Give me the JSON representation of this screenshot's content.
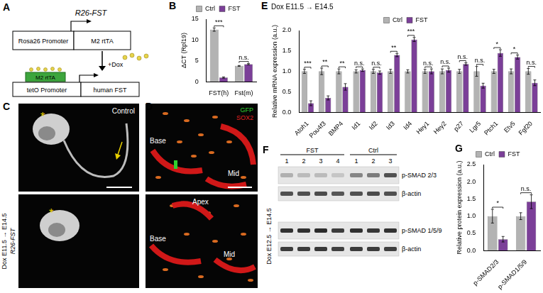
{
  "panel_labels": [
    "A",
    "B",
    "C",
    "D",
    "E",
    "F",
    "G"
  ],
  "diagram": {
    "title": "R26-FST",
    "promoter": "Rosa26 Promoter",
    "transactivator": "M2 rtTA",
    "inducer": "+Dox",
    "bound_factor": "M2 rtTA",
    "response_promoter": "tetO Promoter",
    "transgene": "human FST"
  },
  "images": {
    "C": {
      "condition": "Dox E11.5 → E14.5",
      "rows": [
        "Control",
        "R26-FST"
      ],
      "marks": [
        "*",
        "*"
      ]
    },
    "D": {
      "stains": [
        "GFP",
        "SOX2"
      ],
      "top": [
        "Base",
        "Mid"
      ],
      "bottom": [
        "Apex",
        "Base",
        "Mid"
      ]
    }
  },
  "blot": {
    "condition": "Dox E12.5 → E14.5",
    "groups": [
      {
        "name": "FST",
        "lanes": [
          1,
          2,
          3,
          4
        ]
      },
      {
        "name": "Ctrl",
        "lanes": [
          1,
          2,
          3
        ]
      }
    ],
    "rows": [
      "p-SMAD 2/3",
      "β-actin",
      "p-SMAD 1/5/9",
      "β-actin"
    ]
  },
  "chart_data": [
    {
      "type": "bar",
      "categories": [
        "FST(h)",
        "Fst(m)"
      ],
      "series": [
        {
          "name": "Ctrl",
          "color": "#b3b3b3",
          "values": [
            12.5,
            3.8
          ],
          "errors": [
            0.4,
            0.1
          ]
        },
        {
          "name": "FST",
          "color": "#7b3f98",
          "values": [
            1.0,
            4.2
          ],
          "errors": [
            0.15,
            0.15
          ]
        }
      ],
      "y_label": "ΔCT (Rpl19)",
      "ylim": [
        0,
        15
      ],
      "yticks": [
        0,
        5,
        10,
        15
      ],
      "annotations": [
        "***",
        "n.s."
      ],
      "legend": "top",
      "grid": false
    },
    {
      "type": "bar",
      "title": "Dox E11.5 → E14.5",
      "categories": [
        "Atoh1",
        "Pou4f3",
        "BMP4",
        "Id1",
        "Id2",
        "Id3",
        "Id4",
        "Hey1",
        "Hey2",
        "p27",
        "Lgr5",
        "Ptch1",
        "Etv5",
        "Fgf20"
      ],
      "series": [
        {
          "name": "Ctrl",
          "color": "#b3b3b3",
          "values": [
            1.0,
            1.0,
            1.0,
            1.0,
            1.0,
            1.0,
            1.0,
            1.0,
            1.0,
            1.0,
            1.0,
            1.0,
            1.0,
            1.0
          ],
          "errors": [
            0.05,
            0.08,
            0.06,
            0.04,
            0.05,
            0.05,
            0.04,
            0.05,
            0.06,
            0.05,
            0.12,
            0.05,
            0.06,
            0.07
          ]
        },
        {
          "name": "FST",
          "color": "#7b3f98",
          "values": [
            0.22,
            0.35,
            0.62,
            1.03,
            0.97,
            1.4,
            1.78,
            1.0,
            1.03,
            1.18,
            0.65,
            1.45,
            1.35,
            0.72
          ],
          "errors": [
            0.06,
            0.05,
            0.08,
            0.03,
            0.04,
            0.04,
            0.05,
            0.06,
            0.05,
            0.03,
            0.06,
            0.08,
            0.05,
            0.07
          ]
        }
      ],
      "y_label": "Relative mRNA expression (a.u.)",
      "ylim": [
        0,
        2.0
      ],
      "yticks": [
        {
          "value": 0,
          "label": "0.0"
        },
        {
          "value": 0.5,
          "label": "0.5"
        },
        {
          "value": 1.0,
          "label": "1.0"
        },
        {
          "value": 1.5,
          "label": "1.5"
        },
        {
          "value": 2.0,
          "label": "2.0"
        }
      ],
      "annotations": [
        "***",
        "**",
        "**",
        "n.s.",
        "n.s.",
        "**",
        "***",
        "n.s.",
        "n.s.",
        "n.s.",
        "n.s.",
        "*",
        "*",
        "n.s."
      ],
      "legend": "top",
      "grid": false
    },
    {
      "type": "bar",
      "categories": [
        "p-SMAD2/3",
        "p-SMAD1/5/9"
      ],
      "series": [
        {
          "name": "Ctrl",
          "color": "#b3b3b3",
          "values": [
            1.0,
            1.0
          ],
          "errors": [
            0.2,
            0.1
          ]
        },
        {
          "name": "FST",
          "color": "#7b3f98",
          "values": [
            0.33,
            1.42
          ],
          "errors": [
            0.08,
            0.2
          ]
        }
      ],
      "y_label": "Relative protein expression (a.u.)",
      "ylim": [
        0,
        2.5
      ],
      "yticks": [
        {
          "value": 0,
          "label": "0.0"
        },
        {
          "value": 0.5,
          "label": "0.5"
        },
        {
          "value": 1.0,
          "label": "1.0"
        },
        {
          "value": 1.5,
          "label": "1.5"
        },
        {
          "value": 2.0,
          "label": "2.0"
        },
        {
          "value": 2.5,
          "label": "2.5"
        }
      ],
      "annotations": [
        "*",
        "n.s."
      ],
      "legend": "top",
      "grid": false
    }
  ]
}
